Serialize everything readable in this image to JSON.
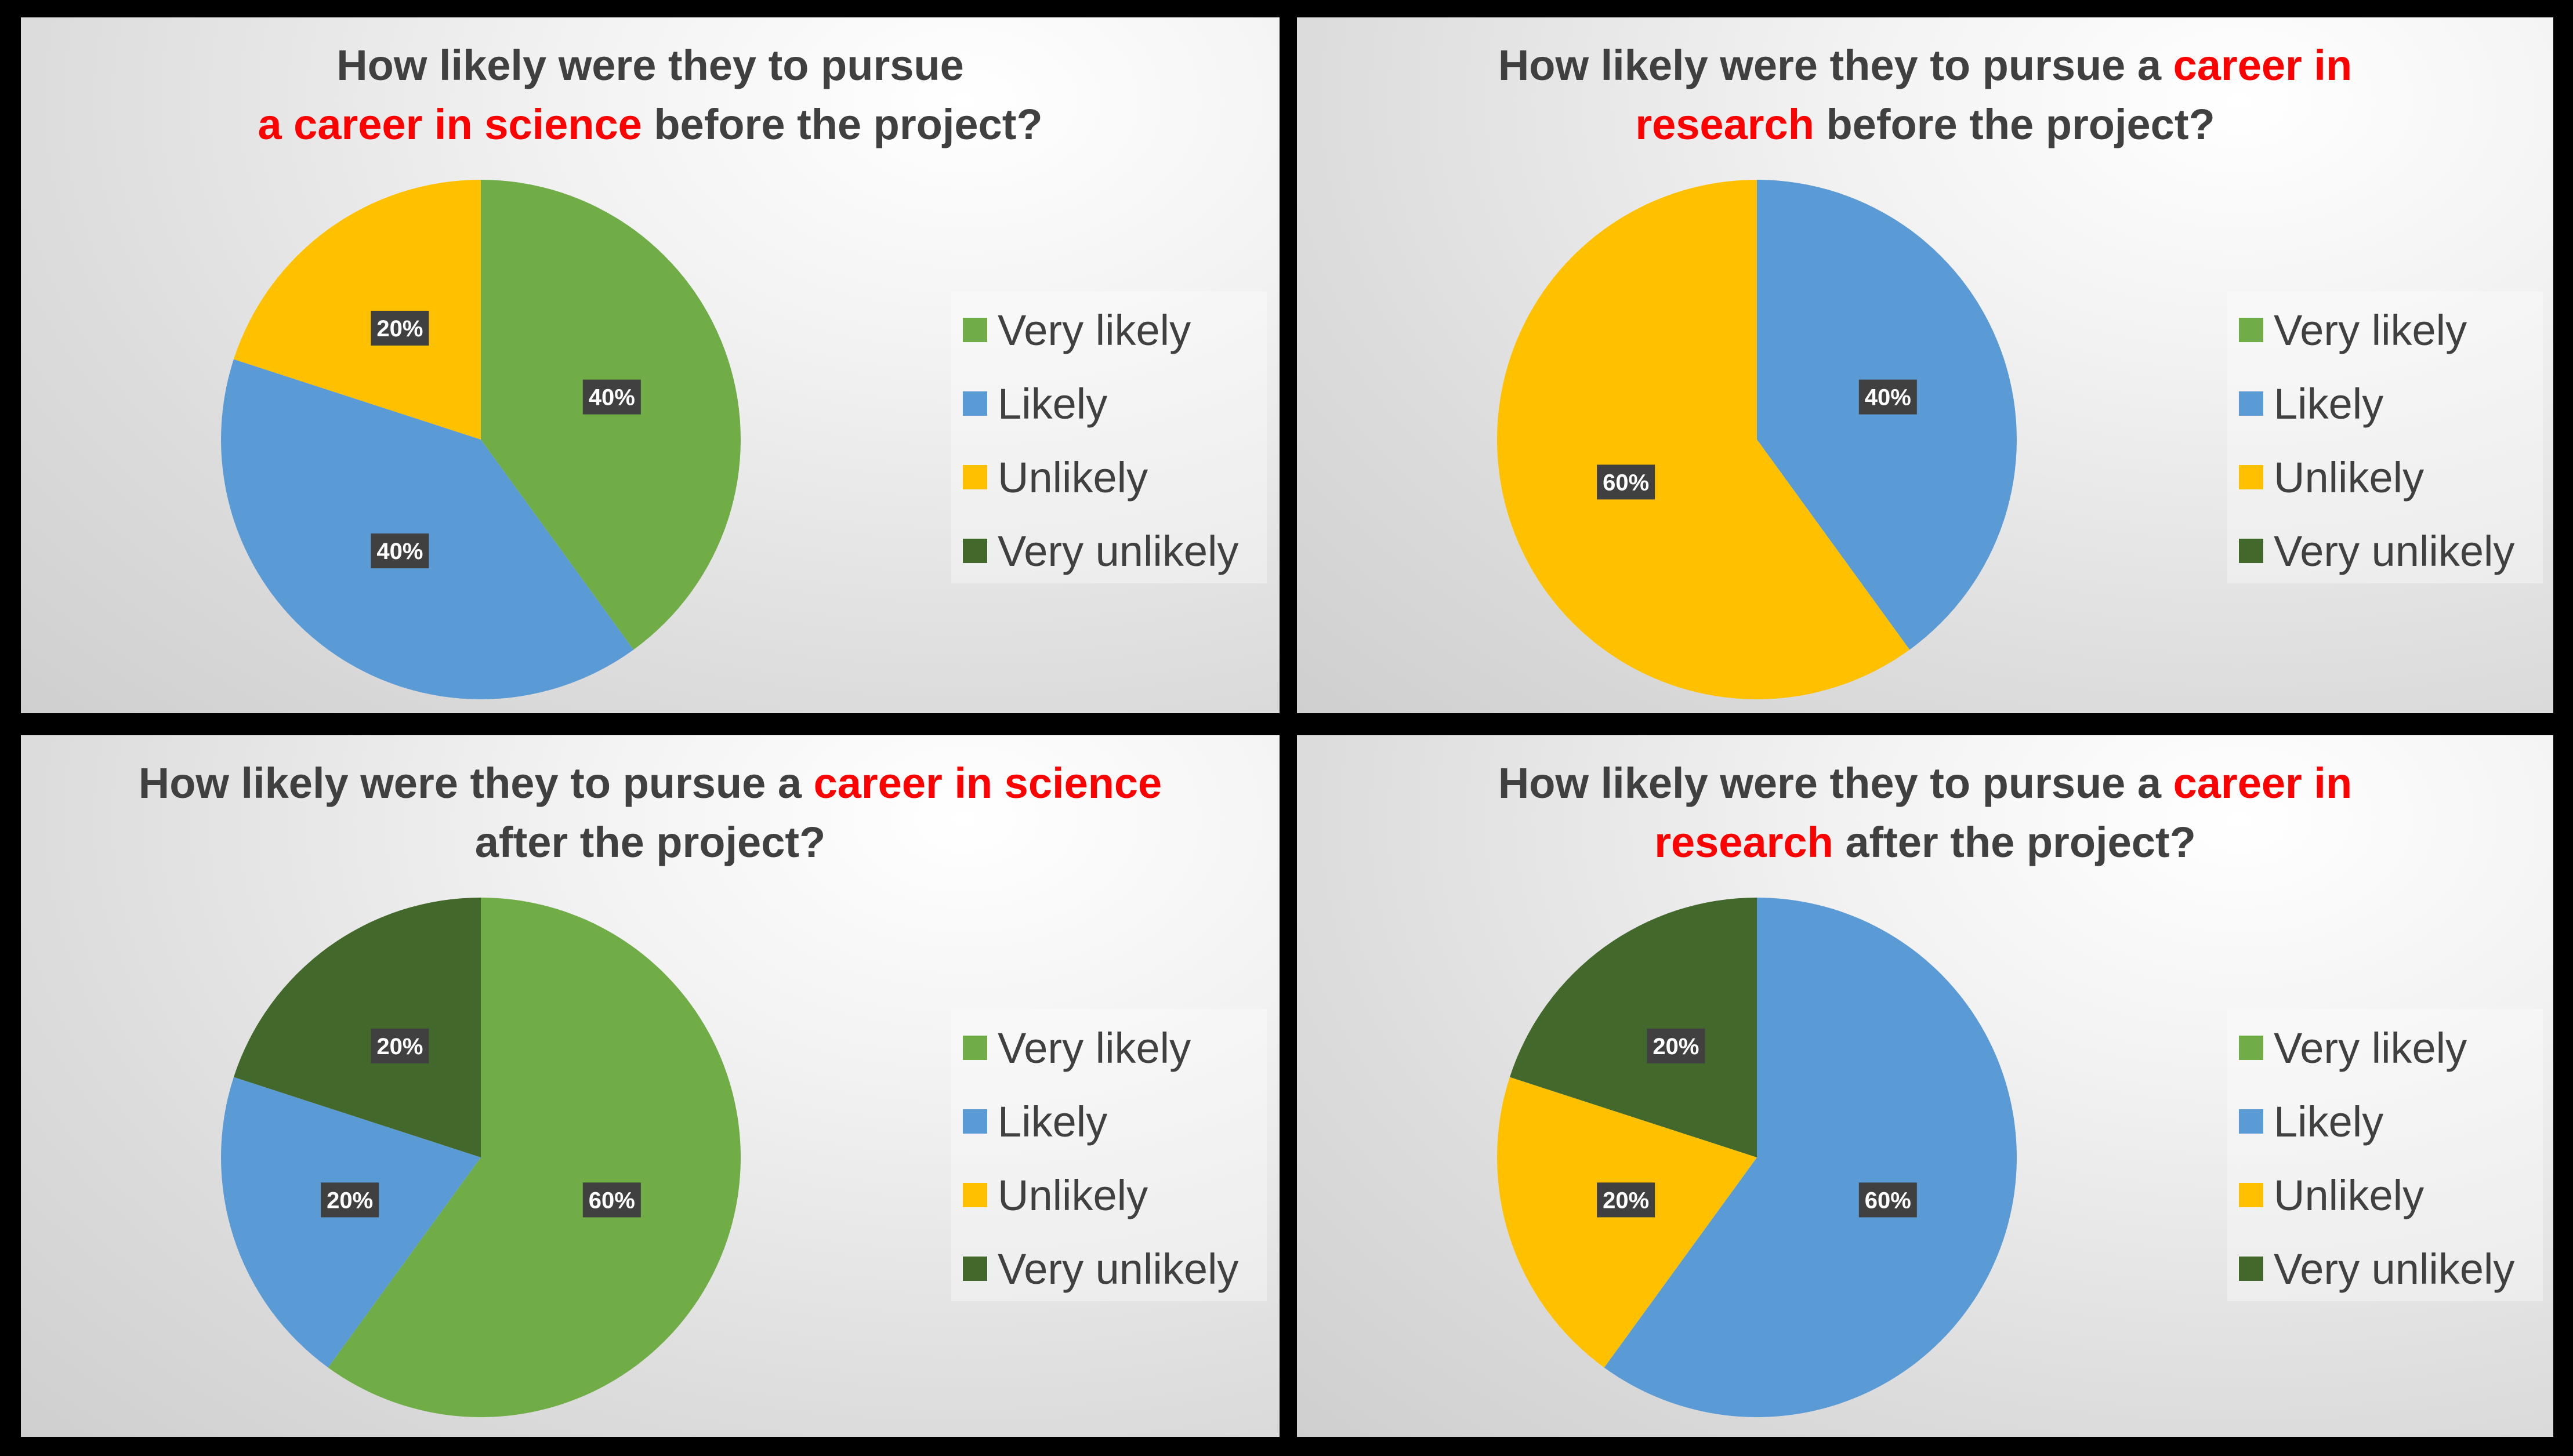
{
  "legend_colors": {
    "Very likely": "#70ad47",
    "Likely": "#5b9bd5",
    "Unlikely": "#ffc000",
    "Very unlikely": "#43682b"
  },
  "label_box_color": "#404040",
  "chart_data": [
    {
      "type": "pie",
      "title": [
        "How likely were they to pursue ",
        "a career in science",
        " before the project?"
      ],
      "categories": [
        "Very likely",
        "Likely",
        "Unlikely",
        "Very unlikely"
      ],
      "values": [
        40,
        40,
        20,
        0
      ],
      "data_labels": [
        "40%",
        "40%",
        "20%",
        ""
      ],
      "legend": "right"
    },
    {
      "type": "pie",
      "title": [
        "How likely were they to pursue a ",
        "career in research",
        " before the project?"
      ],
      "categories": [
        "Very likely",
        "Likely",
        "Unlikely",
        "Very unlikely"
      ],
      "values": [
        0,
        40,
        60,
        0
      ],
      "data_labels": [
        "",
        "40%",
        "60%",
        ""
      ],
      "legend": "right"
    },
    {
      "type": "pie",
      "title": [
        "How likely were they to pursue a ",
        "career in science",
        " after the project?"
      ],
      "categories": [
        "Very likely",
        "Likely",
        "Unlikely",
        "Very unlikely"
      ],
      "values": [
        60,
        20,
        0,
        20
      ],
      "data_labels": [
        "60%",
        "20%",
        "",
        "20%"
      ],
      "legend": "right"
    },
    {
      "type": "pie",
      "title": [
        "How likely were they to pursue a ",
        "career in research",
        " after the project?"
      ],
      "categories": [
        "Very likely",
        "Likely",
        "Unlikely",
        "Very unlikely"
      ],
      "values": [
        0,
        60,
        20,
        20
      ],
      "data_labels": [
        "",
        "60%",
        "20%",
        "20%"
      ],
      "legend": "right"
    }
  ]
}
